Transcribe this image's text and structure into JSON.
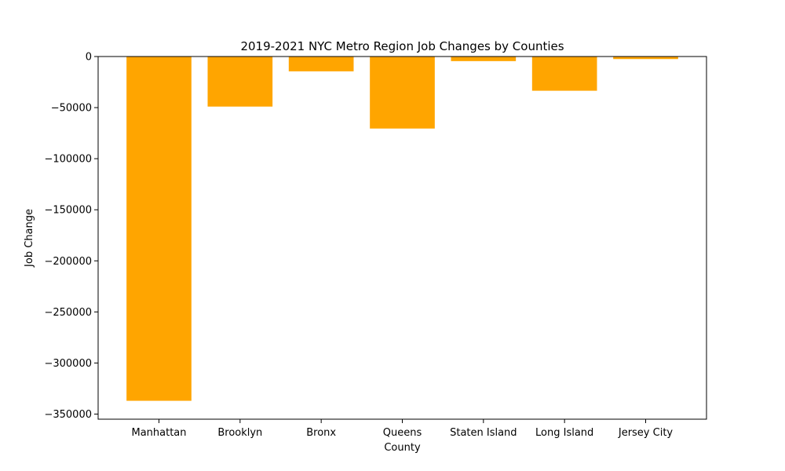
{
  "chart_data": {
    "type": "bar",
    "title": "2019-2021 NYC Metro Region Job Changes by Counties",
    "xlabel": "County",
    "ylabel": "Job Change",
    "categories": [
      "Manhattan",
      "Brooklyn",
      "Bronx",
      "Queens",
      "Staten Island",
      "Long Island",
      "Jersey City"
    ],
    "values": [
      -337000,
      -49000,
      -14500,
      -70500,
      -4500,
      -33500,
      -2500
    ],
    "ylim": [
      -355000,
      0
    ],
    "yticks": [
      0,
      -50000,
      -100000,
      -150000,
      -200000,
      -250000,
      -300000,
      -350000
    ],
    "ytick_labels": [
      "0",
      "−50000",
      "−100000",
      "−150000",
      "−200000",
      "−250000",
      "−300000",
      "−350000"
    ],
    "bar_color": "#ffa500",
    "grid": false,
    "legend": "none"
  }
}
